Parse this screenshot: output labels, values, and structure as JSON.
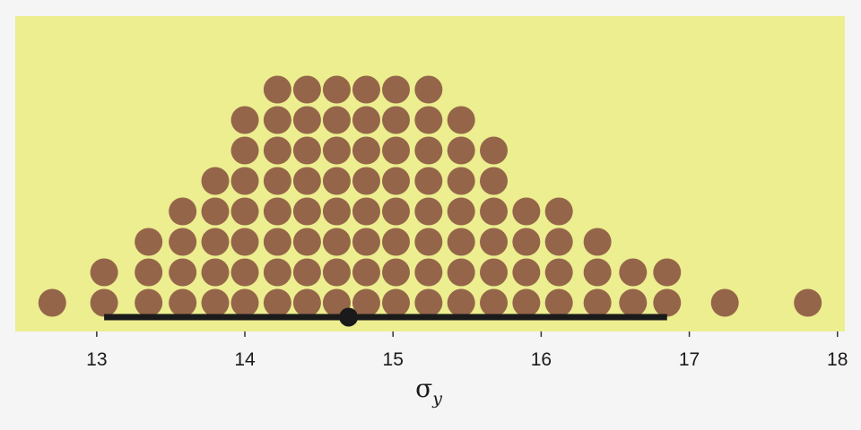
{
  "chart_data": {
    "type": "dotplot",
    "xlabel_symbol": "σ",
    "xlabel_subscript": "y",
    "xlim": [
      12.45,
      18.05
    ],
    "x_ticks": [
      13,
      14,
      15,
      16,
      17,
      18
    ],
    "x_tick_labels": [
      "13",
      "14",
      "15",
      "16",
      "17",
      "18"
    ],
    "grid": false,
    "columns": [
      {
        "x": 12.7,
        "count": 1
      },
      {
        "x": 13.05,
        "count": 2
      },
      {
        "x": 13.35,
        "count": 3
      },
      {
        "x": 13.58,
        "count": 4
      },
      {
        "x": 13.8,
        "count": 5
      },
      {
        "x": 14.0,
        "count": 7
      },
      {
        "x": 14.22,
        "count": 8
      },
      {
        "x": 14.42,
        "count": 8
      },
      {
        "x": 14.62,
        "count": 8
      },
      {
        "x": 14.82,
        "count": 8
      },
      {
        "x": 15.02,
        "count": 8
      },
      {
        "x": 15.24,
        "count": 8
      },
      {
        "x": 15.46,
        "count": 7
      },
      {
        "x": 15.68,
        "count": 6
      },
      {
        "x": 15.9,
        "count": 4
      },
      {
        "x": 16.12,
        "count": 4
      },
      {
        "x": 16.38,
        "count": 3
      },
      {
        "x": 16.62,
        "count": 2
      },
      {
        "x": 16.85,
        "count": 2
      },
      {
        "x": 17.24,
        "count": 1
      },
      {
        "x": 17.8,
        "count": 1
      }
    ],
    "interval": {
      "low": 13.05,
      "high": 16.85
    },
    "point_estimate": 14.7,
    "colors": {
      "panel": "#ecee8f",
      "dots": "#95654a",
      "interval": "#1a1a1a",
      "background": "#f5f5f5"
    }
  }
}
